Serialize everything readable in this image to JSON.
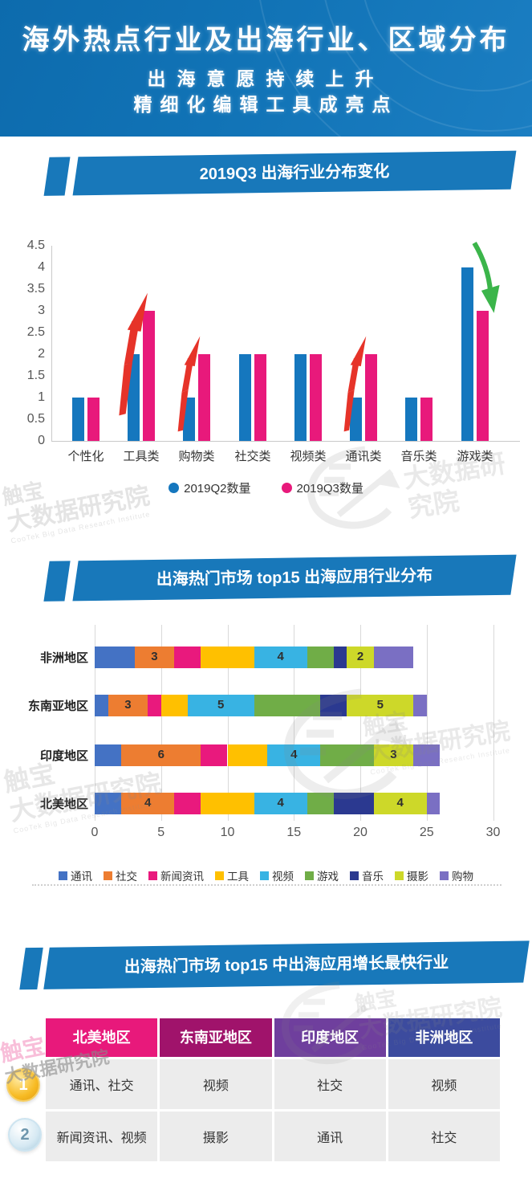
{
  "header": {
    "title": "海外热点行业及出海行业、区域分布",
    "subtitle_line1": "出海意愿持续上升",
    "subtitle_line2": "精细化编辑工具成亮点"
  },
  "sections": {
    "section1_title": "2019Q3 出海行业分布变化",
    "section2_title": "出海热门市场 top15 出海应用行业分布",
    "section3_title": "出海热门市场 top15 中出海应用增长最快行业"
  },
  "colors": {
    "banner_blue": "#1878ba",
    "header_blue": "#1173b6",
    "q2_blue": "#1577be",
    "q3_pink": "#e8197b",
    "arrow_red": "#e63329",
    "arrow_green": "#3bb54a"
  },
  "chart_data": [
    {
      "type": "bar",
      "title": "2019Q3 出海行业分布变化",
      "categories": [
        "个性化",
        "工具类",
        "购物类",
        "社交类",
        "视频类",
        "通讯类",
        "音乐类",
        "游戏类"
      ],
      "series": [
        {
          "name": "2019Q2数量",
          "color": "#1577be",
          "values": [
            1,
            2,
            1,
            2,
            2,
            1,
            1,
            4
          ]
        },
        {
          "name": "2019Q3数量",
          "color": "#e8197b",
          "values": [
            1,
            3,
            2,
            2,
            2,
            2,
            1,
            3
          ]
        }
      ],
      "ylim": [
        0,
        4.5
      ],
      "yticks": [
        0,
        0.5,
        1,
        1.5,
        2,
        2.5,
        3,
        3.5,
        4,
        4.5
      ],
      "grid": false,
      "legend_position": "bottom",
      "annotations": [
        {
          "category": "工具类",
          "type": "up-arrow",
          "color": "#e63329"
        },
        {
          "category": "购物类",
          "type": "up-arrow",
          "color": "#e63329"
        },
        {
          "category": "通讯类",
          "type": "up-arrow",
          "color": "#e63329"
        },
        {
          "category": "游戏类",
          "type": "down-arrow",
          "color": "#3bb54a"
        }
      ]
    },
    {
      "type": "stacked-bar-horizontal",
      "title": "出海热门市场 top15 出海应用行业分布",
      "categories": [
        "非洲地区",
        "东南亚地区",
        "印度地区",
        "北美地区"
      ],
      "series": [
        {
          "name": "通讯",
          "color": "#4472c4",
          "values": [
            3,
            1,
            2,
            2
          ]
        },
        {
          "name": "社交",
          "color": "#ed7d31",
          "values": [
            3,
            3,
            6,
            4
          ]
        },
        {
          "name": "新闻资讯",
          "color": "#e9197d",
          "values": [
            2,
            1,
            2,
            2
          ]
        },
        {
          "name": "工具",
          "color": "#ffc000",
          "values": [
            4,
            2,
            3,
            4
          ]
        },
        {
          "name": "视频",
          "color": "#38b3e3",
          "values": [
            4,
            5,
            4,
            4
          ]
        },
        {
          "name": "游戏",
          "color": "#70ad47",
          "values": [
            2,
            5,
            4,
            2
          ]
        },
        {
          "name": "音乐",
          "color": "#2b3990",
          "values": [
            1,
            2,
            0,
            3
          ]
        },
        {
          "name": "摄影",
          "color": "#cdd829",
          "values": [
            2,
            5,
            3,
            4
          ]
        },
        {
          "name": "购物",
          "color": "#7a6fc3",
          "values": [
            3,
            1,
            2,
            1
          ]
        }
      ],
      "labeled_series": [
        "社交",
        "视频",
        "摄影"
      ],
      "xlim": [
        0,
        30
      ],
      "xticks": [
        0,
        5,
        10,
        15,
        20,
        25,
        30
      ],
      "grid": true,
      "legend_position": "bottom"
    }
  ],
  "table": {
    "headers": [
      {
        "label": "北美地区",
        "color": "#e8197b"
      },
      {
        "label": "东南亚地区",
        "color": "#a0136b"
      },
      {
        "label": "印度地区",
        "color": "#6f3f9d"
      },
      {
        "label": "非洲地区",
        "color": "#3c4b9e"
      }
    ],
    "rows": [
      {
        "rank": "1",
        "cells": [
          "通讯、社交",
          "视频",
          "社交",
          "视频"
        ]
      },
      {
        "rank": "2",
        "cells": [
          "新闻资讯、视频",
          "摄影",
          "通讯",
          "社交"
        ]
      }
    ]
  },
  "watermark": {
    "cn1": "触宝",
    "cn2": "大数据研究院",
    "en": "CooTek Big Data Research Institute"
  }
}
